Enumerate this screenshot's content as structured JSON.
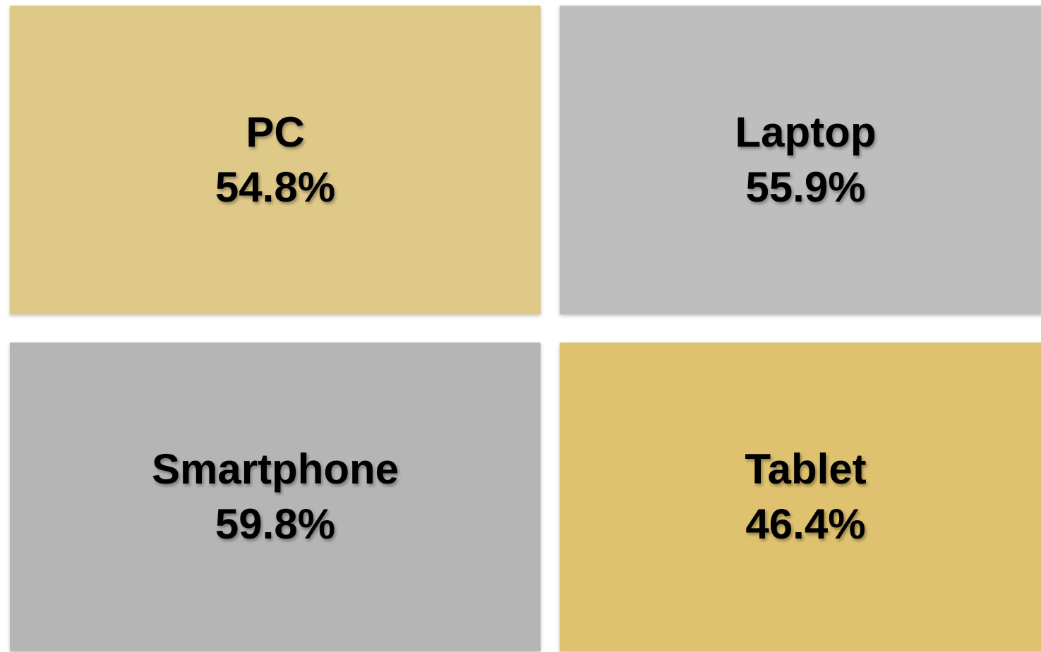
{
  "tiles": [
    {
      "label": "PC",
      "value": "54.8%",
      "color": "#dfc989"
    },
    {
      "label": "Laptop",
      "value": "55.9%",
      "color": "#bebebe"
    },
    {
      "label": "Smartphone",
      "value": "59.8%",
      "color": "#b5b5b5"
    },
    {
      "label": "Tablet",
      "value": "46.4%",
      "color": "#dfc26f"
    }
  ]
}
